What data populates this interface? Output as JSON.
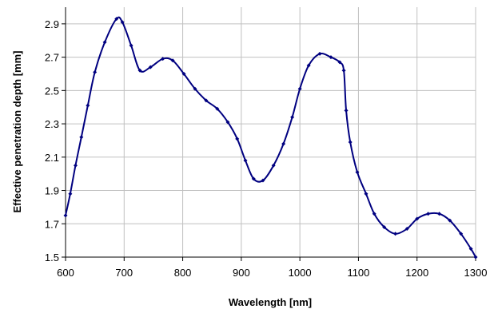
{
  "chart_data": {
    "type": "line",
    "x_label": "Wavelength [nm]",
    "y_label": "Effective penetration depth [mm]",
    "x": [
      600,
      608,
      617,
      627,
      638,
      650,
      667,
      687,
      697,
      712,
      727,
      745,
      766,
      783,
      802,
      821,
      840,
      859,
      877,
      893,
      907,
      921,
      937,
      955,
      972,
      987,
      1000,
      1015,
      1034,
      1053,
      1068,
      1075,
      1079,
      1086,
      1098,
      1113,
      1127,
      1144,
      1163,
      1183,
      1200,
      1219,
      1238,
      1256,
      1275,
      1292,
      1300
    ],
    "values": [
      1.75,
      1.88,
      2.05,
      2.22,
      2.41,
      2.61,
      2.79,
      2.93,
      2.91,
      2.77,
      2.62,
      2.64,
      2.69,
      2.68,
      2.6,
      2.51,
      2.44,
      2.39,
      2.31,
      2.21,
      2.08,
      1.97,
      1.96,
      2.05,
      2.18,
      2.34,
      2.51,
      2.65,
      2.72,
      2.7,
      2.67,
      2.62,
      2.38,
      2.19,
      2.01,
      1.88,
      1.76,
      1.68,
      1.64,
      1.67,
      1.73,
      1.76,
      1.76,
      1.72,
      1.64,
      1.55,
      1.5
    ],
    "color": "#000080",
    "xlim": [
      600,
      1300
    ],
    "xticks": [
      600,
      700,
      800,
      900,
      1000,
      1100,
      1200,
      1300
    ],
    "ylim": [
      1.5,
      3.0
    ],
    "yticks": [
      1.5,
      1.7,
      1.9,
      2.1,
      2.3,
      2.5,
      2.7,
      2.9
    ],
    "grid": true
  }
}
